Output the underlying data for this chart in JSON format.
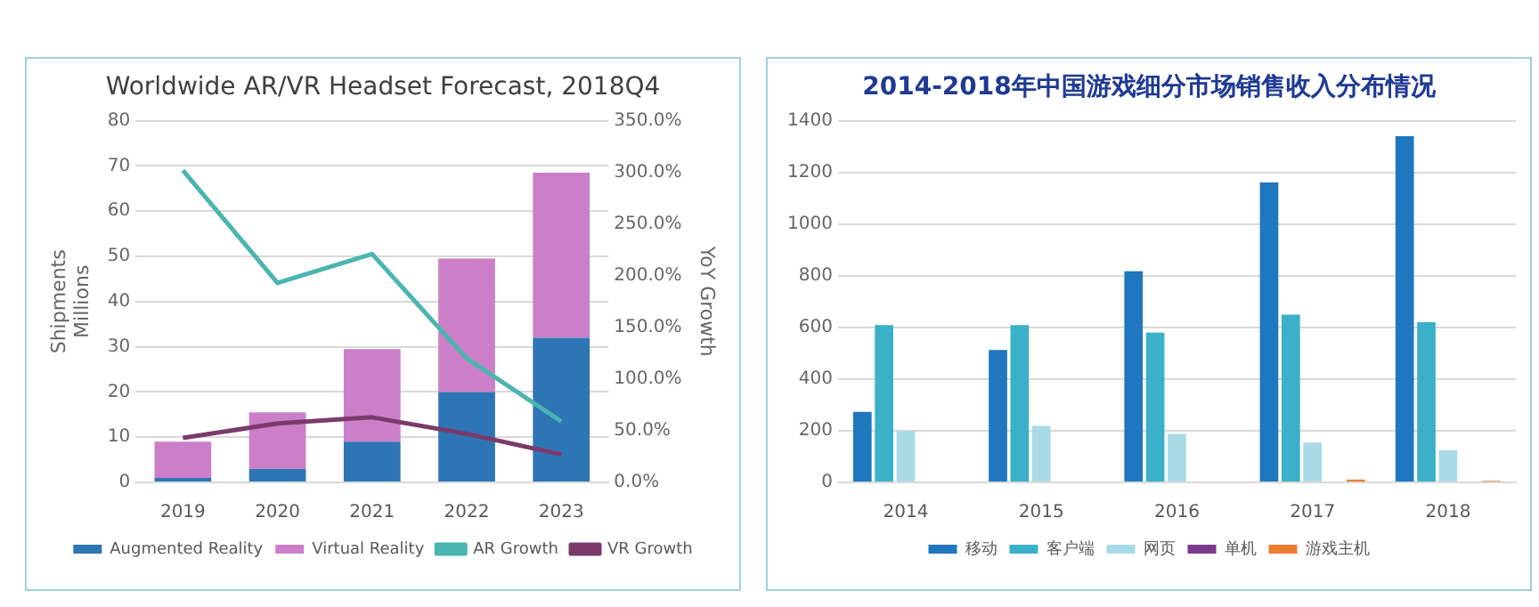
{
  "chart_data": [
    {
      "type": "bar",
      "title": "Worldwide AR/VR Headset Forecast, 2018Q4",
      "ylabel": "Shipments Millions",
      "y2label": "YoY Growth",
      "categories": [
        "2019",
        "2020",
        "2021",
        "2022",
        "2023"
      ],
      "stacked": true,
      "legend": "bottom",
      "grid": "y",
      "marker": "none",
      "line_style": "solid",
      "series": [
        {
          "name": "Augmented Reality",
          "type": "bar",
          "color": "#2e75b6",
          "values": [
            1,
            3,
            9,
            20,
            32
          ]
        },
        {
          "name": "Virtual Reality",
          "type": "bar",
          "color": "#cc7fc8",
          "values": [
            8,
            12.5,
            20.5,
            29.5,
            36.5
          ]
        },
        {
          "name": "AR Growth",
          "type": "line",
          "axis": "y2",
          "color": "#4bb5b0",
          "values": [
            302,
            193,
            221,
            120,
            59
          ]
        },
        {
          "name": "VR Growth",
          "type": "line",
          "axis": "y2",
          "color": "#7b3a6b",
          "values": [
            43,
            57,
            63,
            47,
            27
          ]
        }
      ],
      "ylim": [
        0,
        80
      ],
      "yticks": [
        0,
        10,
        20,
        30,
        40,
        50,
        60,
        70,
        80
      ],
      "y2lim": [
        0,
        350
      ],
      "y2ticks": [
        {
          "value": 0,
          "label": "0.0%"
        },
        {
          "value": 50,
          "label": "50.0%"
        },
        {
          "value": 100,
          "label": "100.0%"
        },
        {
          "value": 150,
          "label": "150.0%"
        },
        {
          "value": 200,
          "label": "200.0%"
        },
        {
          "value": 250,
          "label": "250.0%"
        },
        {
          "value": 300,
          "label": "300.0%"
        },
        {
          "value": 350,
          "label": "350.0%"
        }
      ]
    },
    {
      "type": "bar",
      "title": "2014-2018年中国游戏细分市场销售收入分布情况",
      "categories": [
        "2014",
        "2015",
        "2016",
        "2017",
        "2018"
      ],
      "legend": "bottom",
      "grid": "y",
      "series": [
        {
          "name": "移动",
          "color": "#1f77c0",
          "values": [
            273,
            512,
            817,
            1161,
            1340
          ]
        },
        {
          "name": "客户端",
          "color": "#3bb0c9",
          "values": [
            609,
            609,
            580,
            649,
            620
          ]
        },
        {
          "name": "网页",
          "color": "#a8dbe6",
          "values": [
            199,
            219,
            188,
            154,
            125
          ]
        },
        {
          "name": "单机",
          "color": "#7b3a8c",
          "values": [
            0,
            0,
            0,
            0,
            0
          ]
        },
        {
          "name": "游戏主机",
          "color": "#ed7d31",
          "values": [
            0,
            0,
            0,
            11,
            6
          ]
        }
      ],
      "ylim": [
        0,
        1400
      ],
      "yticks": [
        0,
        200,
        400,
        600,
        800,
        1000,
        1200,
        1400
      ]
    }
  ]
}
